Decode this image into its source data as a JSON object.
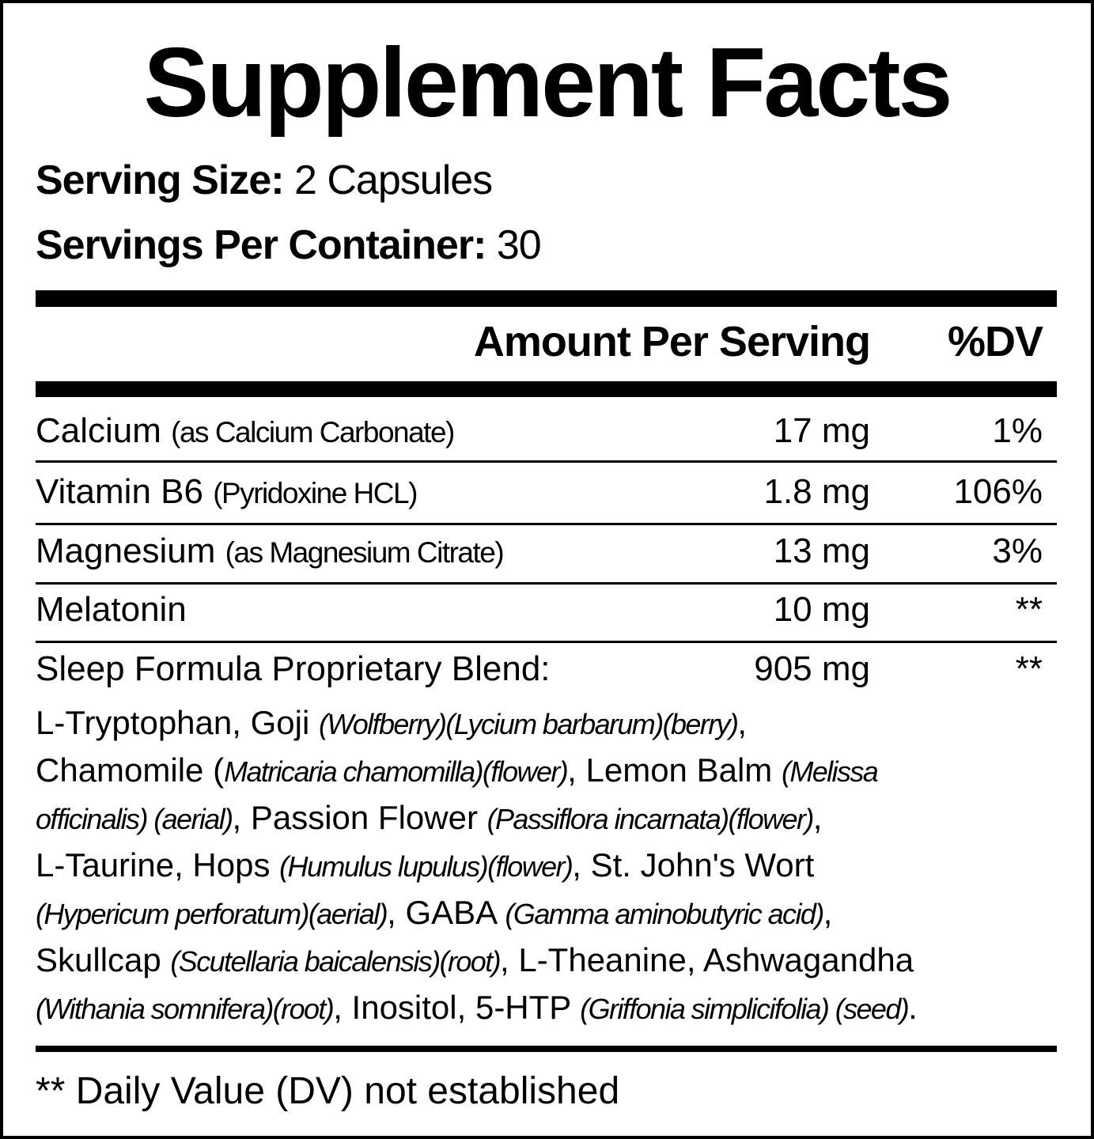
{
  "title": "Supplement Facts",
  "serving_size_label": "Serving Size:",
  "serving_size_value": "2 Capsules",
  "servings_per_container_label": "Servings Per Container:",
  "servings_per_container_value": "30",
  "header": {
    "amount": "Amount Per Serving",
    "dv": "%DV"
  },
  "rows": [
    {
      "name": "Calcium",
      "detail": "(as Calcium Carbonate)",
      "amount": "17 mg",
      "dv": "1%"
    },
    {
      "name": "Vitamin B6",
      "detail": "(Pyridoxine HCL)",
      "amount": "1.8 mg",
      "dv": "106%"
    },
    {
      "name": "Magnesium",
      "detail": "(as Magnesium Citrate)",
      "amount": "13 mg",
      "dv": "3%"
    },
    {
      "name": "Melatonin",
      "detail": "",
      "amount": "10 mg",
      "dv": "**"
    },
    {
      "name": "Sleep Formula Proprietary Blend:",
      "detail": "",
      "amount": "905 mg",
      "dv": "**"
    }
  ],
  "blend_lines": [
    [
      {
        "t": "L-Tryptophan, Goji "
      },
      {
        "t": "(Wolfberry)(Lycium barbarum)(berry)",
        "i": true
      },
      {
        "t": ","
      }
    ],
    [
      {
        "t": "Chamomile ("
      },
      {
        "t": "Matricaria chamomilla)(flower)",
        "i": true
      },
      {
        "t": ", Lemon Balm "
      },
      {
        "t": "(Melissa",
        "i": true
      }
    ],
    [
      {
        "t": "officinalis) (aerial)",
        "i": true
      },
      {
        "t": ", Passion Flower "
      },
      {
        "t": "(Passiflora incarnata)(flower)",
        "i": true
      },
      {
        "t": ","
      }
    ],
    [
      {
        "t": "L-Taurine, Hops "
      },
      {
        "t": "(Humulus lupulus)(flower)",
        "i": true
      },
      {
        "t": ", St. John's Wort"
      }
    ],
    [
      {
        "t": "(Hypericum perforatum)(aerial)",
        "i": true
      },
      {
        "t": ", GABA "
      },
      {
        "t": "(Gamma aminobutyric acid)",
        "i": true
      },
      {
        "t": ","
      }
    ],
    [
      {
        "t": "Skullcap "
      },
      {
        "t": "(Scutellaria baicalensis)(root)",
        "i": true
      },
      {
        "t": ", L-Theanine, Ashwagandha"
      }
    ],
    [
      {
        "t": "(Withania somnifera)(root)",
        "i": true
      },
      {
        "t": ", Inositol, 5-HTP "
      },
      {
        "t": "(Griffonia simplicifolia) (seed)",
        "i": true
      },
      {
        "t": "."
      }
    ]
  ],
  "footnote": "** Daily Value (DV) not established"
}
